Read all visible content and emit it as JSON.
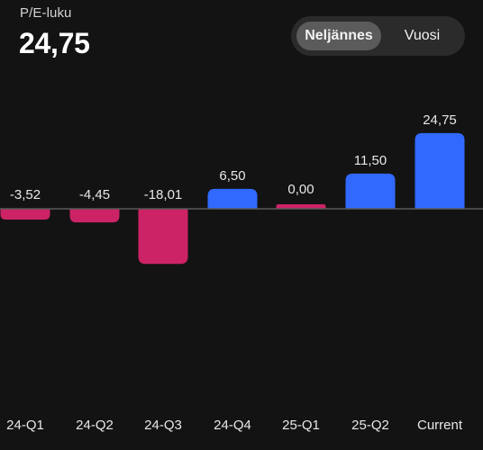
{
  "header": {
    "metric_label": "P/E-luku",
    "metric_value": "24,75"
  },
  "period_toggle": {
    "options": [
      "Neljännes",
      "Vuosi"
    ],
    "selected": "Neljännes"
  },
  "colors": {
    "positive": "#3169ff",
    "negative": "#cc2366",
    "baseline": "#5a5a5a",
    "text": "#e8e8e8"
  },
  "chart_data": {
    "type": "bar",
    "categories": [
      "24-Q1",
      "24-Q2",
      "24-Q3",
      "24-Q4",
      "25-Q1",
      "25-Q2",
      "Current"
    ],
    "values": [
      -3.52,
      -4.45,
      -18.01,
      6.5,
      0.0,
      11.5,
      24.75
    ],
    "value_labels": [
      "-3,52",
      "-4,45",
      "-18,01",
      "6,50",
      "0,00",
      "11,50",
      "24,75"
    ],
    "zero_is_negative_style": [
      false,
      false,
      false,
      false,
      true,
      false,
      false
    ],
    "title": "P/E-luku",
    "grid": false,
    "legend": "none"
  }
}
